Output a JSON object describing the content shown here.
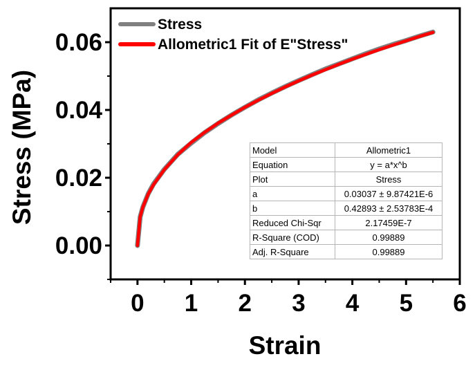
{
  "chart_data": {
    "type": "line",
    "xlabel": "Strain",
    "ylabel": "Stress (MPa)",
    "xlim": [
      -0.5,
      6
    ],
    "ylim": [
      -0.01,
      0.07
    ],
    "xticks": [
      0,
      1,
      2,
      3,
      4,
      5,
      6
    ],
    "xtick_labels": [
      "0",
      "1",
      "2",
      "3",
      "4",
      "5",
      "6"
    ],
    "yticks": [
      0.0,
      0.02,
      0.04,
      0.06
    ],
    "ytick_labels": [
      "0.00",
      "0.02",
      "0.04",
      "0.06"
    ],
    "grid": false,
    "legend_position": "top-left",
    "series": [
      {
        "name": "Stress",
        "color": "#808080",
        "x": [
          0,
          0.05,
          0.1,
          0.2,
          0.3,
          0.5,
          0.75,
          1.0,
          1.25,
          1.5,
          1.75,
          2.0,
          2.25,
          2.5,
          2.75,
          3.0,
          3.25,
          3.5,
          3.75,
          4.0,
          4.25,
          4.5,
          4.75,
          5.0,
          5.25,
          5.5
        ],
        "y": [
          0.0,
          0.0084,
          0.0113,
          0.0153,
          0.0182,
          0.0225,
          0.0269,
          0.0302,
          0.0333,
          0.036,
          0.0385,
          0.0408,
          0.043,
          0.045,
          0.0469,
          0.0487,
          0.0504,
          0.0521,
          0.0536,
          0.0551,
          0.0566,
          0.058,
          0.0593,
          0.0605,
          0.0618,
          0.063
        ]
      },
      {
        "name": "Allometric1 Fit of E\"Stress\"",
        "color": "#ff0000",
        "x": [
          0,
          0.05,
          0.1,
          0.2,
          0.3,
          0.5,
          0.75,
          1.0,
          1.25,
          1.5,
          1.75,
          2.0,
          2.25,
          2.5,
          2.75,
          3.0,
          3.25,
          3.5,
          3.75,
          4.0,
          4.25,
          4.5,
          4.75,
          5.0,
          5.25,
          5.5
        ],
        "y": [
          0.0,
          0.0084,
          0.0113,
          0.0152,
          0.018,
          0.0224,
          0.0268,
          0.0304,
          0.0334,
          0.0361,
          0.0385,
          0.0408,
          0.0429,
          0.0449,
          0.0468,
          0.0486,
          0.0503,
          0.0519,
          0.0535,
          0.055,
          0.0564,
          0.0578,
          0.0591,
          0.0604,
          0.0617,
          0.0629
        ]
      }
    ],
    "fit_table": {
      "rows": [
        {
          "key": "Model",
          "value": "Allometric1"
        },
        {
          "key": "Equation",
          "value": "y = a*x^b"
        },
        {
          "key": "Plot",
          "value": "Stress"
        },
        {
          "key": "a",
          "value": "0.03037 ± 9.87421E-6"
        },
        {
          "key": "b",
          "value": "0.42893 ± 2.53783E-4"
        },
        {
          "key": "Reduced Chi-Sqr",
          "value": "2.17459E-7"
        },
        {
          "key": "R-Square (COD)",
          "value": "0.99889"
        },
        {
          "key": "Adj. R-Square",
          "value": "0.99889"
        }
      ]
    }
  }
}
